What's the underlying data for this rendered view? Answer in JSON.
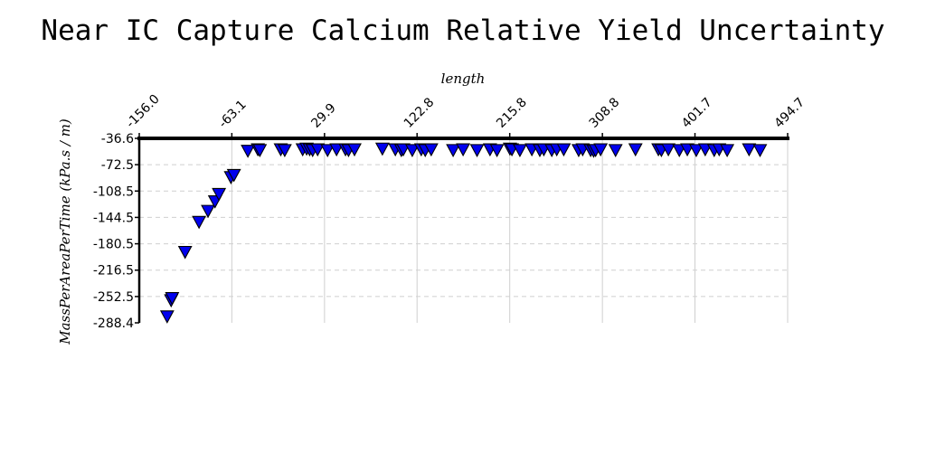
{
  "chart_data": {
    "type": "scatter",
    "title": "Near IC Capture Calcium Relative Yield Uncertainty",
    "xlabel": "length",
    "ylabel": "MassPerAreaPerTime (kPa.s / m)",
    "x_axis_position": "top",
    "y_inverted": true,
    "xlim": [
      -156.0,
      494.7
    ],
    "ylim": [
      -36.6,
      -288.4
    ],
    "x_ticks": [
      "-156.0",
      "-63.1",
      "29.9",
      "122.8",
      "215.8",
      "308.8",
      "401.7",
      "494.7"
    ],
    "y_ticks": [
      "-36.6",
      "-72.5",
      "-108.5",
      "-144.5",
      "-180.5",
      "-216.5",
      "-252.5",
      "-288.4"
    ],
    "grid": true,
    "marker": "triangle-down",
    "marker_color": "#0000ee",
    "marker_edge_color": "#000000",
    "series": [
      {
        "x": [
          -128,
          -124,
          -123,
          -110,
          -96,
          -87,
          -80,
          -76,
          -64,
          -61,
          -47,
          -37,
          -35,
          -14,
          -10,
          8,
          12,
          15,
          18,
          23,
          33,
          42,
          51,
          54,
          60,
          88,
          101,
          107,
          109,
          118,
          127,
          131,
          137,
          159,
          169,
          183,
          196,
          203,
          216,
          218,
          226,
          238,
          246,
          250,
          258,
          263,
          270,
          285,
          289,
          297,
          300,
          302,
          307,
          322,
          342,
          365,
          368,
          375,
          386,
          394,
          403,
          412,
          421,
          426,
          434,
          456,
          467
        ],
        "y": [
          -279,
          -257,
          -254,
          -191,
          -150,
          -135,
          -122,
          -112,
          -89,
          -86,
          -53,
          -51,
          -52,
          -51,
          -52,
          -51,
          -50,
          -51,
          -52,
          -51,
          -52,
          -51,
          -51,
          -52,
          -51,
          -50,
          -51,
          -52,
          -51,
          -52,
          -51,
          -52,
          -51,
          -52,
          -51,
          -52,
          -51,
          -52,
          -50,
          -51,
          -52,
          -51,
          -52,
          -51,
          -52,
          -51,
          -51,
          -52,
          -51,
          -52,
          -53,
          -52,
          -51,
          -52,
          -51,
          -51,
          -52,
          -51,
          -52,
          -51,
          -52,
          -51,
          -52,
          -51,
          -52,
          -51,
          -52
        ]
      }
    ]
  }
}
